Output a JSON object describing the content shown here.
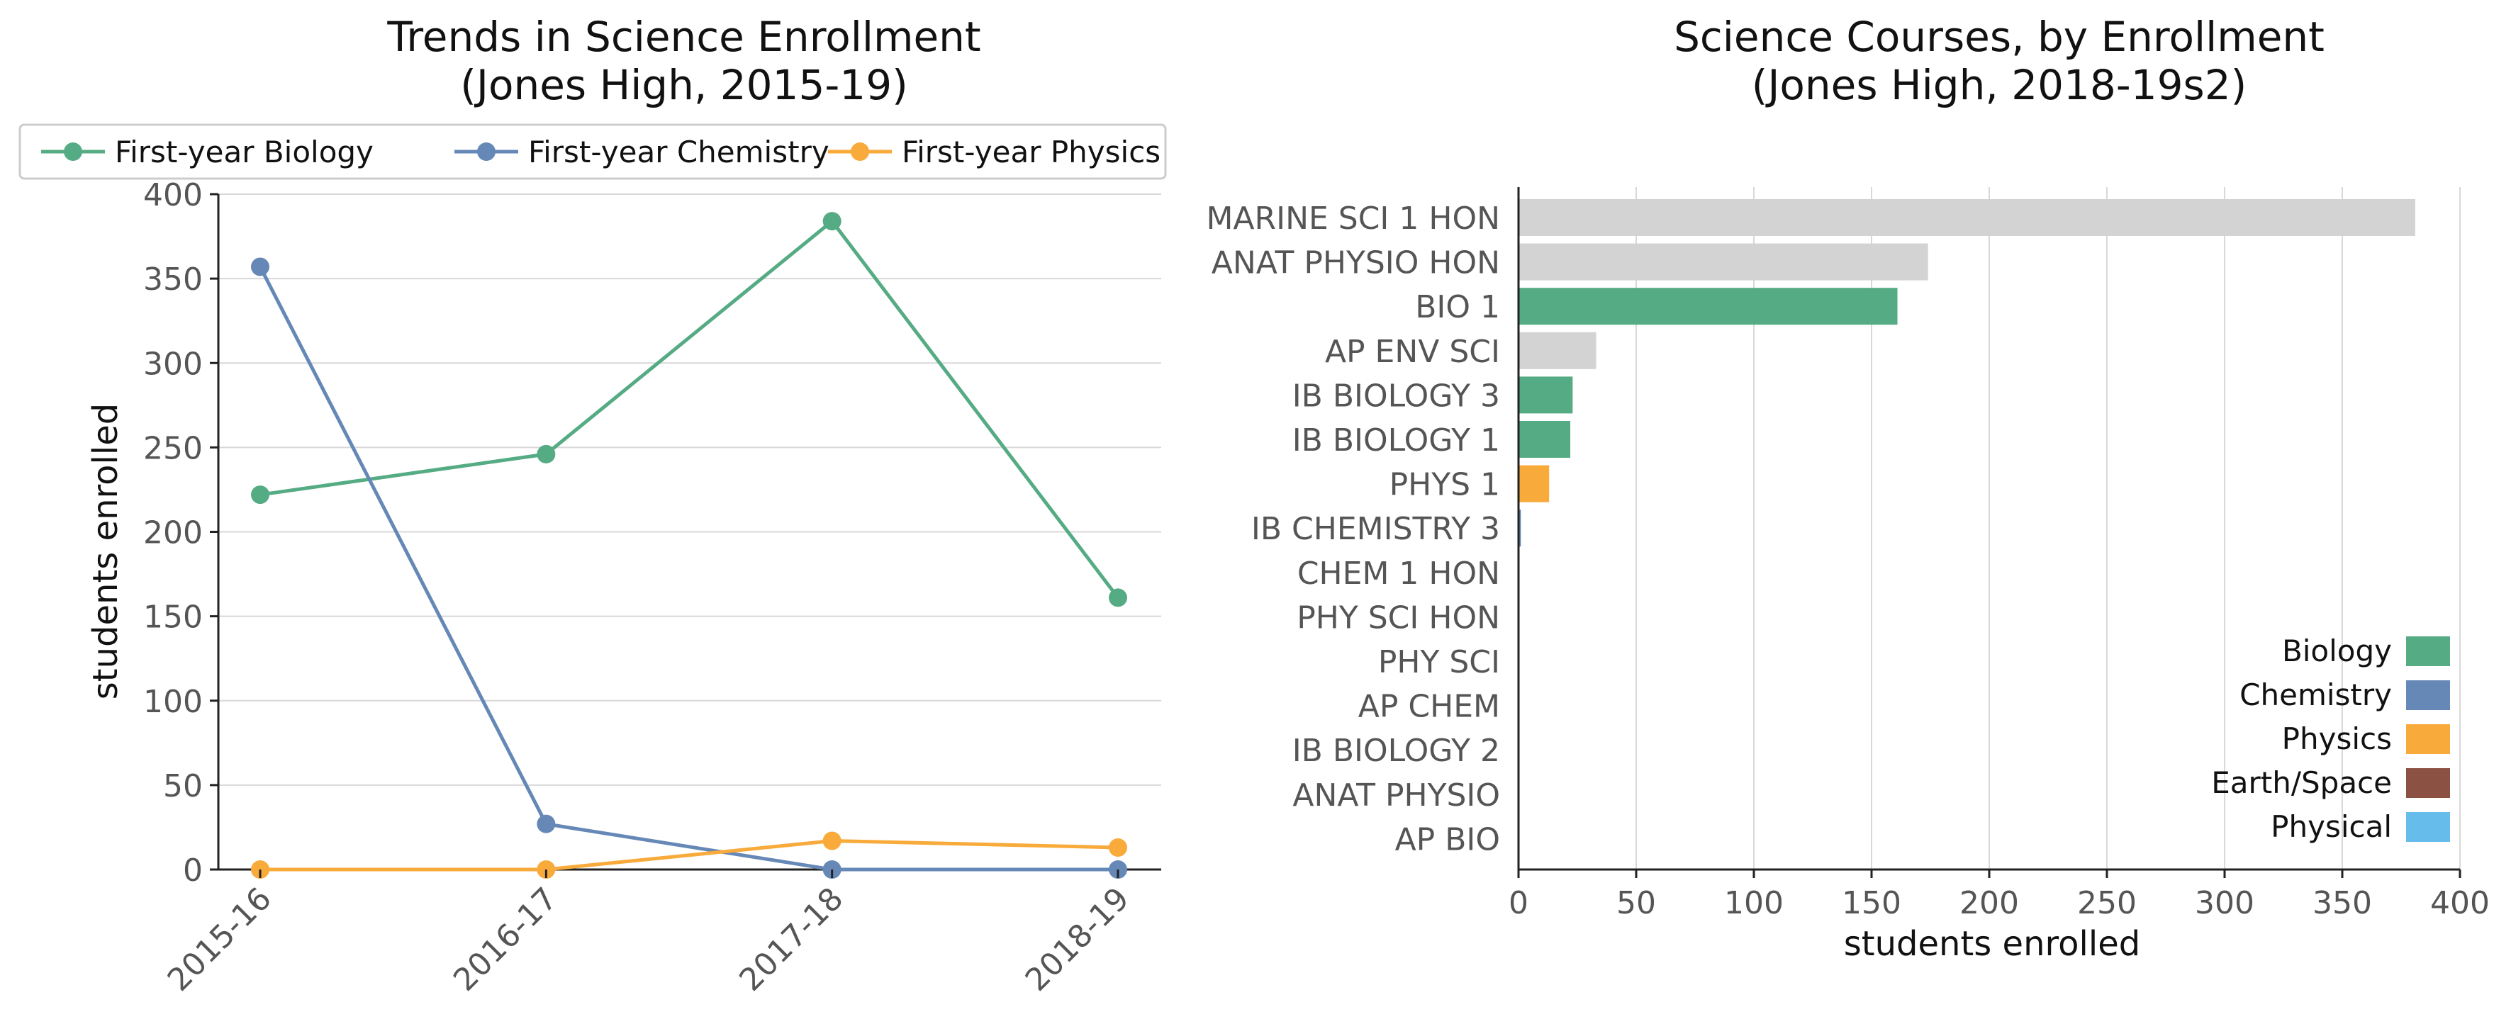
{
  "chart_data": [
    {
      "type": "line",
      "title": "Trends in Science Enrollment",
      "subtitle": "(Jones High, 2015-19)",
      "ylabel": "students enrolled",
      "xlabel": "",
      "categories": [
        "2015-16",
        "2016-17",
        "2017-18",
        "2018-19"
      ],
      "ylim": [
        0,
        400
      ],
      "yticks": [
        0,
        50,
        100,
        150,
        200,
        250,
        300,
        350,
        400
      ],
      "grid": "horizontal",
      "legend": "top",
      "series": [
        {
          "name": "First-year Biology",
          "color": "#55ab84",
          "values": [
            222,
            246,
            384,
            161
          ]
        },
        {
          "name": "First-year Chemistry",
          "color": "#6588b6",
          "values": [
            357,
            27,
            0,
            0
          ]
        },
        {
          "name": "First-year Physics",
          "color": "#f8aa3a",
          "values": [
            0,
            0,
            17,
            13
          ]
        }
      ]
    },
    {
      "type": "bar",
      "orientation": "horizontal",
      "title": "Science Courses, by Enrollment",
      "subtitle": "(Jones High, 2018-19s2)",
      "xlabel": "students enrolled",
      "ylabel": "",
      "xlim": [
        0,
        400
      ],
      "xticks": [
        0,
        50,
        100,
        150,
        200,
        250,
        300,
        350,
        400
      ],
      "grid": "vertical",
      "legend": "bottom-right",
      "default_color": "#d3d3d3",
      "categories": [
        "MARINE SCI 1 HON",
        "ANAT PHYSIO HON",
        "BIO 1",
        "AP ENV SCI",
        "IB BIOLOGY 3",
        "IB BIOLOGY 1",
        "PHYS 1",
        "IB CHEMISTRY 3",
        "CHEM 1 HON",
        "PHY SCI HON",
        "PHY SCI",
        "AP CHEM",
        "IB BIOLOGY 2",
        "ANAT PHYSIO",
        "AP BIO"
      ],
      "values": [
        381,
        174,
        161,
        33,
        23,
        22,
        13,
        1,
        0,
        0,
        0,
        0,
        0,
        0,
        0
      ],
      "bar_groups": [
        "other",
        "other",
        "Biology",
        "other",
        "Biology",
        "Biology",
        "Physics",
        "Chemistry",
        "Chemistry",
        "Physical",
        "Physical",
        "Chemistry",
        "Biology",
        "other",
        "Biology"
      ],
      "legend_items": [
        {
          "name": "Biology",
          "color": "#55ab84"
        },
        {
          "name": "Chemistry",
          "color": "#6588b6"
        },
        {
          "name": "Physics",
          "color": "#f8aa3a"
        },
        {
          "name": "Earth/Space",
          "color": "#8b5143"
        },
        {
          "name": "Physical",
          "color": "#66bdec"
        }
      ]
    }
  ]
}
